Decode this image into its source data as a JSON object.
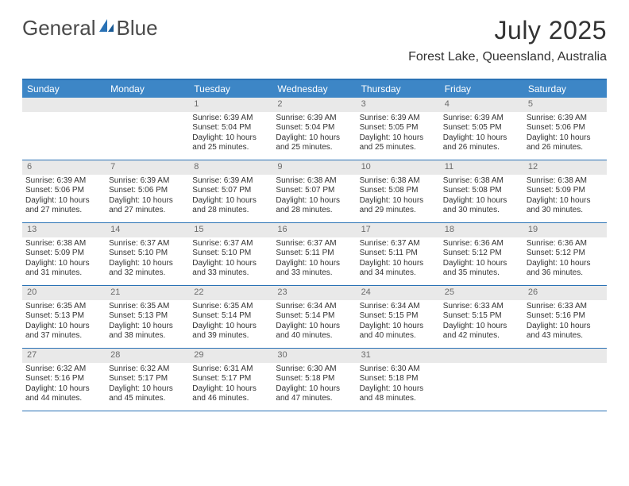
{
  "brand": {
    "part1": "General",
    "part2": "Blue"
  },
  "colors": {
    "header_bar": "#3d86c6",
    "border": "#2a72b5",
    "daynum_bg": "#e9e9e9",
    "daynum_color": "#6b6b6b",
    "text": "#333333",
    "logo_gray": "#4a4a4a",
    "logo_blue": "#2a72b5"
  },
  "title": "July 2025",
  "location": "Forest Lake, Queensland, Australia",
  "weekdays": [
    "Sunday",
    "Monday",
    "Tuesday",
    "Wednesday",
    "Thursday",
    "Friday",
    "Saturday"
  ],
  "weeks": [
    [
      {
        "n": "",
        "lines": []
      },
      {
        "n": "",
        "lines": []
      },
      {
        "n": "1",
        "lines": [
          "Sunrise: 6:39 AM",
          "Sunset: 5:04 PM",
          "Daylight: 10 hours",
          "and 25 minutes."
        ]
      },
      {
        "n": "2",
        "lines": [
          "Sunrise: 6:39 AM",
          "Sunset: 5:04 PM",
          "Daylight: 10 hours",
          "and 25 minutes."
        ]
      },
      {
        "n": "3",
        "lines": [
          "Sunrise: 6:39 AM",
          "Sunset: 5:05 PM",
          "Daylight: 10 hours",
          "and 25 minutes."
        ]
      },
      {
        "n": "4",
        "lines": [
          "Sunrise: 6:39 AM",
          "Sunset: 5:05 PM",
          "Daylight: 10 hours",
          "and 26 minutes."
        ]
      },
      {
        "n": "5",
        "lines": [
          "Sunrise: 6:39 AM",
          "Sunset: 5:06 PM",
          "Daylight: 10 hours",
          "and 26 minutes."
        ]
      }
    ],
    [
      {
        "n": "6",
        "lines": [
          "Sunrise: 6:39 AM",
          "Sunset: 5:06 PM",
          "Daylight: 10 hours",
          "and 27 minutes."
        ]
      },
      {
        "n": "7",
        "lines": [
          "Sunrise: 6:39 AM",
          "Sunset: 5:06 PM",
          "Daylight: 10 hours",
          "and 27 minutes."
        ]
      },
      {
        "n": "8",
        "lines": [
          "Sunrise: 6:39 AM",
          "Sunset: 5:07 PM",
          "Daylight: 10 hours",
          "and 28 minutes."
        ]
      },
      {
        "n": "9",
        "lines": [
          "Sunrise: 6:38 AM",
          "Sunset: 5:07 PM",
          "Daylight: 10 hours",
          "and 28 minutes."
        ]
      },
      {
        "n": "10",
        "lines": [
          "Sunrise: 6:38 AM",
          "Sunset: 5:08 PM",
          "Daylight: 10 hours",
          "and 29 minutes."
        ]
      },
      {
        "n": "11",
        "lines": [
          "Sunrise: 6:38 AM",
          "Sunset: 5:08 PM",
          "Daylight: 10 hours",
          "and 30 minutes."
        ]
      },
      {
        "n": "12",
        "lines": [
          "Sunrise: 6:38 AM",
          "Sunset: 5:09 PM",
          "Daylight: 10 hours",
          "and 30 minutes."
        ]
      }
    ],
    [
      {
        "n": "13",
        "lines": [
          "Sunrise: 6:38 AM",
          "Sunset: 5:09 PM",
          "Daylight: 10 hours",
          "and 31 minutes."
        ]
      },
      {
        "n": "14",
        "lines": [
          "Sunrise: 6:37 AM",
          "Sunset: 5:10 PM",
          "Daylight: 10 hours",
          "and 32 minutes."
        ]
      },
      {
        "n": "15",
        "lines": [
          "Sunrise: 6:37 AM",
          "Sunset: 5:10 PM",
          "Daylight: 10 hours",
          "and 33 minutes."
        ]
      },
      {
        "n": "16",
        "lines": [
          "Sunrise: 6:37 AM",
          "Sunset: 5:11 PM",
          "Daylight: 10 hours",
          "and 33 minutes."
        ]
      },
      {
        "n": "17",
        "lines": [
          "Sunrise: 6:37 AM",
          "Sunset: 5:11 PM",
          "Daylight: 10 hours",
          "and 34 minutes."
        ]
      },
      {
        "n": "18",
        "lines": [
          "Sunrise: 6:36 AM",
          "Sunset: 5:12 PM",
          "Daylight: 10 hours",
          "and 35 minutes."
        ]
      },
      {
        "n": "19",
        "lines": [
          "Sunrise: 6:36 AM",
          "Sunset: 5:12 PM",
          "Daylight: 10 hours",
          "and 36 minutes."
        ]
      }
    ],
    [
      {
        "n": "20",
        "lines": [
          "Sunrise: 6:35 AM",
          "Sunset: 5:13 PM",
          "Daylight: 10 hours",
          "and 37 minutes."
        ]
      },
      {
        "n": "21",
        "lines": [
          "Sunrise: 6:35 AM",
          "Sunset: 5:13 PM",
          "Daylight: 10 hours",
          "and 38 minutes."
        ]
      },
      {
        "n": "22",
        "lines": [
          "Sunrise: 6:35 AM",
          "Sunset: 5:14 PM",
          "Daylight: 10 hours",
          "and 39 minutes."
        ]
      },
      {
        "n": "23",
        "lines": [
          "Sunrise: 6:34 AM",
          "Sunset: 5:14 PM",
          "Daylight: 10 hours",
          "and 40 minutes."
        ]
      },
      {
        "n": "24",
        "lines": [
          "Sunrise: 6:34 AM",
          "Sunset: 5:15 PM",
          "Daylight: 10 hours",
          "and 40 minutes."
        ]
      },
      {
        "n": "25",
        "lines": [
          "Sunrise: 6:33 AM",
          "Sunset: 5:15 PM",
          "Daylight: 10 hours",
          "and 42 minutes."
        ]
      },
      {
        "n": "26",
        "lines": [
          "Sunrise: 6:33 AM",
          "Sunset: 5:16 PM",
          "Daylight: 10 hours",
          "and 43 minutes."
        ]
      }
    ],
    [
      {
        "n": "27",
        "lines": [
          "Sunrise: 6:32 AM",
          "Sunset: 5:16 PM",
          "Daylight: 10 hours",
          "and 44 minutes."
        ]
      },
      {
        "n": "28",
        "lines": [
          "Sunrise: 6:32 AM",
          "Sunset: 5:17 PM",
          "Daylight: 10 hours",
          "and 45 minutes."
        ]
      },
      {
        "n": "29",
        "lines": [
          "Sunrise: 6:31 AM",
          "Sunset: 5:17 PM",
          "Daylight: 10 hours",
          "and 46 minutes."
        ]
      },
      {
        "n": "30",
        "lines": [
          "Sunrise: 6:30 AM",
          "Sunset: 5:18 PM",
          "Daylight: 10 hours",
          "and 47 minutes."
        ]
      },
      {
        "n": "31",
        "lines": [
          "Sunrise: 6:30 AM",
          "Sunset: 5:18 PM",
          "Daylight: 10 hours",
          "and 48 minutes."
        ]
      },
      {
        "n": "",
        "lines": []
      },
      {
        "n": "",
        "lines": []
      }
    ]
  ]
}
